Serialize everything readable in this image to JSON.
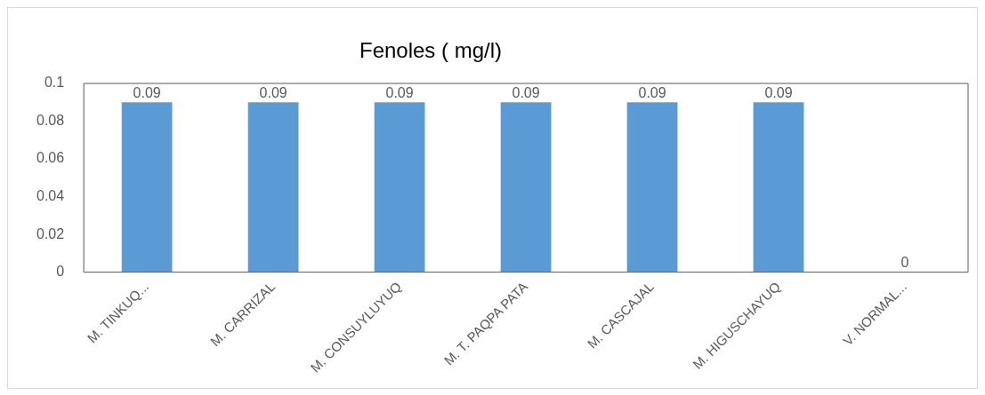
{
  "chart_data": {
    "type": "bar",
    "title": "Fenoles ( mg/l)",
    "categories": [
      "M. TINKUQ...",
      "M. CARRIZAL",
      "M. CONSUYLUYUQ",
      "M. T. PAQPA PATA",
      "M. CASCAJAL",
      "M. HIGUSCHAYUQ",
      "V. NORMAL..."
    ],
    "values": [
      0.09,
      0.09,
      0.09,
      0.09,
      0.09,
      0.09,
      0
    ],
    "color": "#5b9bd5",
    "ylim": [
      0,
      0.1
    ],
    "yticks": [
      0,
      0.02,
      0.04,
      0.06,
      0.08,
      0.1
    ],
    "grid": false,
    "legend": false,
    "data_labels": true
  }
}
